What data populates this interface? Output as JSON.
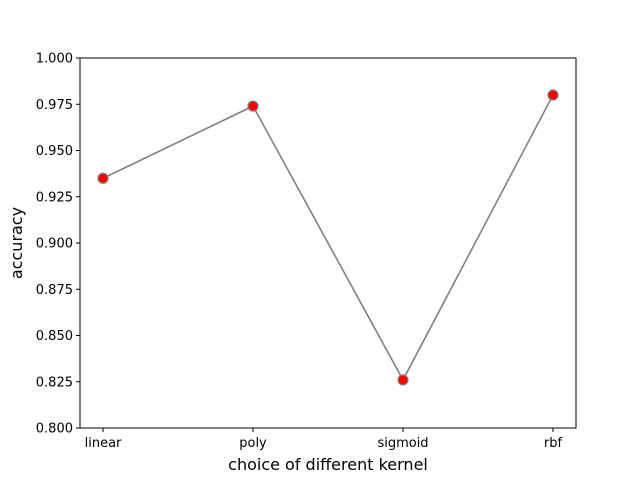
{
  "chart_data": {
    "type": "line",
    "title": "",
    "xlabel": "choice of different kernel",
    "ylabel": "accuracy",
    "categories": [
      "linear",
      "poly",
      "sigmoid",
      "rbf"
    ],
    "series": [
      {
        "values": [
          0.935,
          0.974,
          0.826,
          0.98
        ]
      }
    ],
    "ylim": [
      0.8,
      1.0
    ],
    "yticks": [
      "0.800",
      "0.825",
      "0.850",
      "0.875",
      "0.900",
      "0.925",
      "0.950",
      "0.975",
      "1.000"
    ],
    "grid": false,
    "legend": "none",
    "colors": {
      "line": "#808080",
      "marker_fill": "#ff0000",
      "marker_edge": "#808080",
      "axes": "#000000"
    }
  }
}
